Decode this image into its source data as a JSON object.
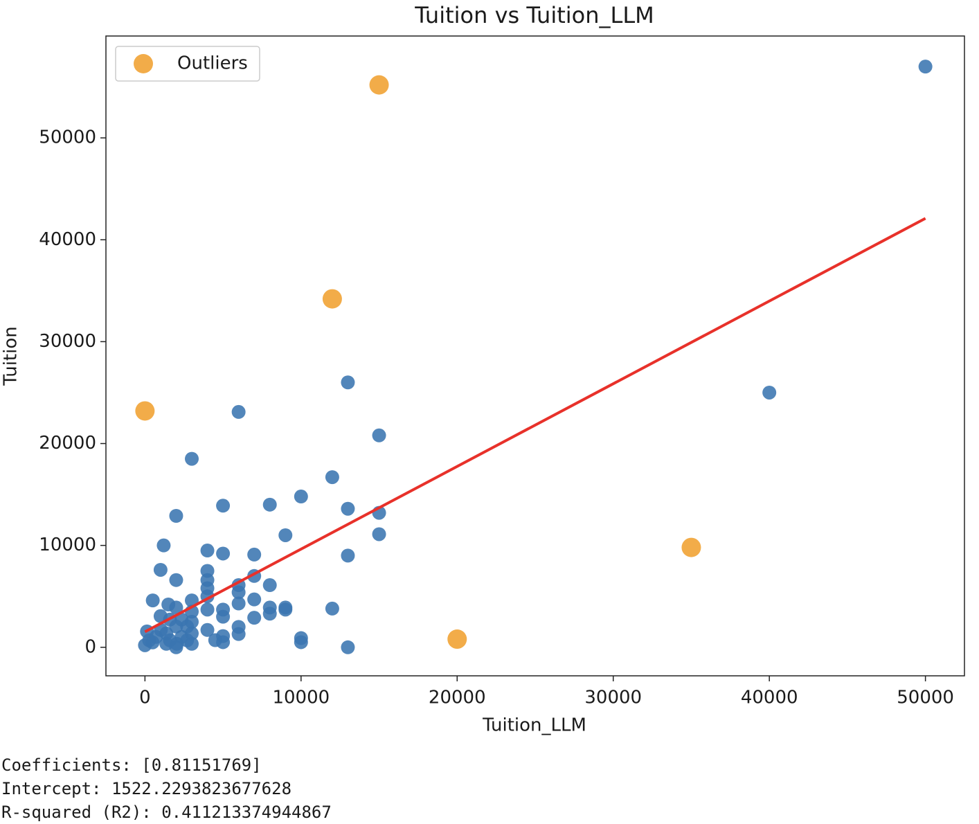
{
  "chart_data": {
    "type": "scatter",
    "title": "Tuition vs Tuition_LLM",
    "xlabel": "Tuition_LLM",
    "ylabel": "Tuition",
    "xlim": [
      -2500,
      52500
    ],
    "ylim": [
      -2800,
      60000
    ],
    "xticks": [
      0,
      10000,
      20000,
      30000,
      40000,
      50000
    ],
    "yticks": [
      0,
      10000,
      20000,
      30000,
      40000,
      50000
    ],
    "legend": "upper left",
    "series": [
      {
        "color": "#3a75b0",
        "size": 10,
        "x": [
          50000,
          40000,
          13000,
          6000,
          15000,
          3000,
          12000,
          10000,
          5000,
          8000,
          13000,
          2000,
          15000,
          9000,
          15000,
          1200,
          4000,
          5000,
          7000,
          13000,
          1000,
          4000,
          4000,
          2000,
          7000,
          8000,
          6000,
          6000,
          4000,
          4000,
          6000,
          7000,
          500,
          3000,
          12000,
          9000,
          8000,
          8000,
          5000,
          5000,
          4000,
          7000,
          9000,
          1500,
          2000,
          3000,
          6000,
          6000,
          4000,
          5000,
          5000,
          4500,
          10000,
          10000,
          13000,
          0,
          270,
          490,
          710,
          1020,
          1370,
          1600,
          2040,
          2350,
          2700,
          3000,
          3000,
          1000,
          1600,
          2350,
          2000,
          130,
          1370,
          2000,
          3000,
          2700
        ],
        "values": [
          57000,
          25000,
          26000,
          23100,
          20800,
          18500,
          16700,
          14800,
          13900,
          14000,
          13600,
          12900,
          13200,
          11000,
          11100,
          10000,
          9500,
          9200,
          9100,
          9000,
          7600,
          7500,
          6600,
          6600,
          7000,
          6100,
          6100,
          5400,
          5800,
          5000,
          4300,
          4700,
          4600,
          4600,
          3800,
          3900,
          3900,
          3300,
          3700,
          3000,
          3700,
          2900,
          3700,
          4200,
          3900,
          3500,
          2000,
          1300,
          1700,
          1100,
          500,
          700,
          900,
          500,
          0,
          200,
          680,
          480,
          1020,
          1700,
          1360,
          680,
          340,
          1020,
          2040,
          340,
          1360,
          3060,
          2720,
          2720,
          2040,
          1560,
          340,
          0,
          2500,
          680
        ]
      },
      {
        "name": "Outliers",
        "color": "#f0a030",
        "size": 14,
        "x": [
          0,
          15000,
          12000,
          35000,
          20000
        ],
        "values": [
          23200,
          55200,
          34200,
          9800,
          800
        ]
      }
    ],
    "fit_line": {
      "color": "#e8312a",
      "x": [
        0,
        50000
      ],
      "values": [
        1522,
        42098
      ]
    }
  },
  "output": [
    "Coefficients: [0.81151769]",
    "Intercept: 1522.2293823677628",
    "R-squared (R2): 0.411213374944867"
  ]
}
